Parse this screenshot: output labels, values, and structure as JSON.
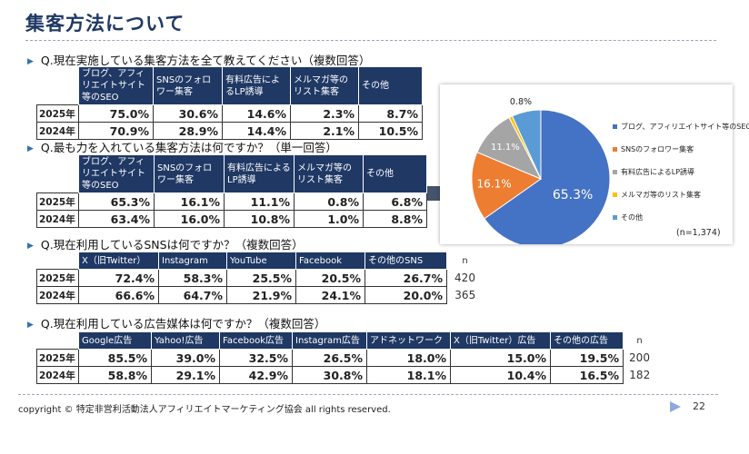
{
  "title": "集客方法について",
  "q1": {
    "question": "Q.現在実施している集客方法を全て教えてください（複数回答）",
    "headers": [
      "ブログ、アフィリエイトサイト等のSEO",
      "SNSのフォロワー集客",
      "有料広告によるLP誘導",
      "メルマガ等のリスト集客",
      "その他"
    ],
    "rows": [
      {
        "year": "2025年",
        "values": [
          "75.0%",
          "30.6%",
          "14.6%",
          "2.3%",
          "8.7%"
        ]
      },
      {
        "year": "2024年",
        "values": [
          "70.9%",
          "28.9%",
          "14.4%",
          "2.1%",
          "10.5%"
        ]
      }
    ]
  },
  "q2": {
    "question": "Q.最も力を入れている集客方法は何ですか？（単一回答）",
    "headers": [
      "ブログ、アフィリエイトサイト等のSEO",
      "SNSのフォロワー集客",
      "有料広告によるLP誘導",
      "メルマガ等のリスト集客",
      "その他"
    ],
    "rows": [
      {
        "year": "2025年",
        "values": [
          "65.3%",
          "16.1%",
          "11.1%",
          "0.8%",
          "6.8%"
        ]
      },
      {
        "year": "2024年",
        "values": [
          "63.4%",
          "16.0%",
          "10.8%",
          "1.0%",
          "8.8%"
        ]
      }
    ]
  },
  "q3": {
    "question": "Q.現在利用しているSNSは何ですか？（複数回答）",
    "headers": [
      "X（旧Twitter）",
      "Instagram",
      "YouTube",
      "Facebook",
      "その他のSNS"
    ],
    "n_label": "n",
    "rows": [
      {
        "year": "2025年",
        "values": [
          "72.4%",
          "58.3%",
          "25.5%",
          "20.5%",
          "26.7%"
        ],
        "n": "420"
      },
      {
        "year": "2024年",
        "values": [
          "66.6%",
          "64.7%",
          "21.9%",
          "24.1%",
          "20.0%"
        ],
        "n": "365"
      }
    ]
  },
  "q4": {
    "question": "Q.現在利用している広告媒体は何ですか？（複数回答）",
    "headers": [
      "Google広告",
      "Yahoo!広告",
      "Facebook広告",
      "Instagram広告",
      "アドネットワーク",
      "X（旧Twitter）広告",
      "その他の広告"
    ],
    "n_label": "n",
    "rows": [
      {
        "year": "2025年",
        "values": [
          "85.5%",
          "39.0%",
          "32.5%",
          "26.5%",
          "18.0%",
          "15.0%",
          "19.5%"
        ],
        "n": "200"
      },
      {
        "year": "2024年",
        "values": [
          "58.8%",
          "29.1%",
          "42.9%",
          "30.8%",
          "18.1%",
          "10.4%",
          "16.5%"
        ],
        "n": "182"
      }
    ]
  },
  "chart_data": {
    "type": "pie",
    "title": "",
    "categories": [
      "ブログ、アフィリエイトサイト等のSEO",
      "SNSのフォロワー集客",
      "有料広告によるLP誘導",
      "メルマガ等のリスト集客",
      "その他"
    ],
    "values": [
      65.3,
      16.1,
      11.1,
      0.8,
      6.8
    ],
    "labels": [
      "65.3%",
      "16.1%",
      "11.1%",
      "0.8%",
      ""
    ],
    "colors": [
      "#4472c4",
      "#ed7d31",
      "#a5a5a5",
      "#ffc000",
      "#5b9bd5"
    ],
    "legend_position": "right",
    "note": "(n=1,374)"
  },
  "footer": {
    "copyright": "copyright © 特定非営利活動法人アフィリエイトマーケティング協会 all rights reserved.",
    "page": "22"
  },
  "colors": {
    "header_bg": "#1f3864",
    "accent": "#2e75b6"
  }
}
